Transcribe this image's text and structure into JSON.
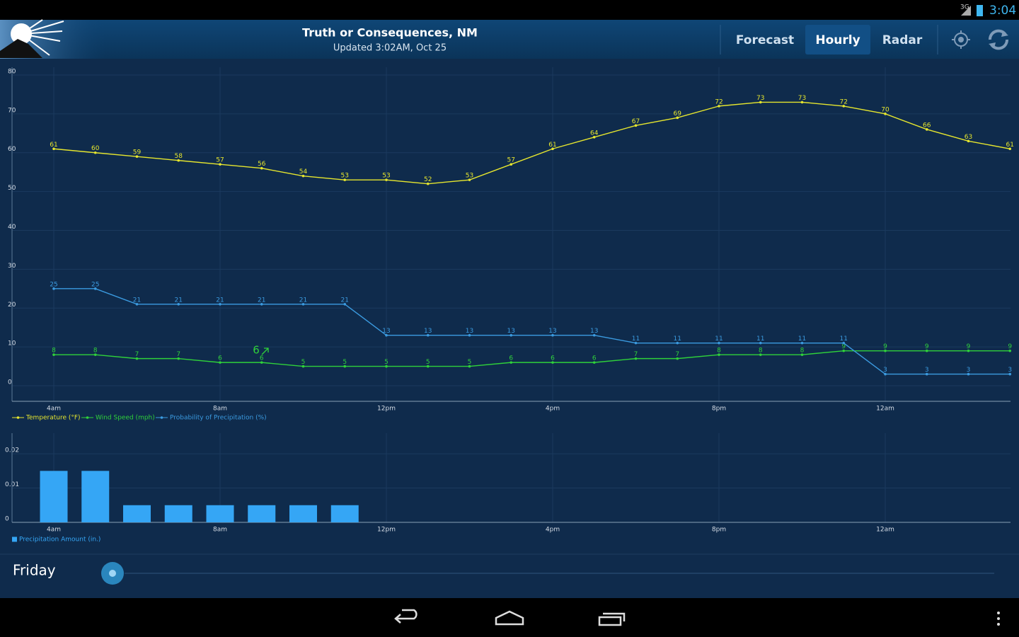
{
  "status_bar": {
    "network": "3G",
    "time": "3:04"
  },
  "header": {
    "location": "Truth or Consequences, NM",
    "updated": "Updated 3:02AM, Oct 25",
    "tabs": [
      "Forecast",
      "Hourly",
      "Radar"
    ],
    "selected_tab": 1
  },
  "chart_data": [
    {
      "type": "line",
      "categories": [
        "4am",
        null,
        null,
        null,
        "8am",
        null,
        null,
        null,
        "12pm",
        null,
        null,
        null,
        "4pm",
        null,
        null,
        null,
        "8pm",
        null,
        null,
        null,
        "12am",
        null,
        null,
        null
      ],
      "series": [
        {
          "name": "Temperature (°F)",
          "color": "#e6e62e",
          "values": [
            61,
            60,
            59,
            58,
            57,
            56,
            54,
            53,
            53,
            52,
            53,
            57,
            61,
            64,
            67,
            69,
            72,
            73,
            73,
            72,
            70,
            66,
            63,
            61
          ]
        },
        {
          "name": "Wind Speed (mph)",
          "color": "#2fd13a",
          "values": [
            8,
            8,
            7,
            7,
            6,
            6,
            5,
            5,
            5,
            5,
            5,
            6,
            6,
            6,
            7,
            7,
            8,
            8,
            8,
            9,
            9,
            9,
            9,
            9
          ]
        },
        {
          "name": "Probability of Precipitation (%)",
          "color": "#3b9be0",
          "values": [
            25,
            25,
            21,
            21,
            21,
            21,
            21,
            21,
            13,
            13,
            13,
            13,
            13,
            13,
            11,
            11,
            11,
            11,
            11,
            11,
            3,
            3,
            3,
            3
          ]
        }
      ],
      "annotation": "6",
      "ylim": [
        -4,
        82
      ],
      "yticks": [
        0,
        10,
        20,
        30,
        40,
        50,
        60,
        70,
        80
      ],
      "grid": true
    },
    {
      "type": "bar",
      "categories": [
        "4am",
        null,
        null,
        null,
        "8am",
        null,
        null,
        null,
        "12pm",
        null,
        null,
        null,
        "4pm",
        null,
        null,
        null,
        "8pm",
        null,
        null,
        null,
        "12am",
        null,
        null,
        null
      ],
      "series": [
        {
          "name": "Precipitation Amount (in.)",
          "color": "#35a6f5",
          "values": [
            0.015,
            0.015,
            0.005,
            0.005,
            0.005,
            0.005,
            0.005,
            0.005,
            0,
            0,
            0,
            0,
            0,
            0,
            0,
            0,
            0,
            0,
            0,
            0,
            0,
            0,
            0,
            0
          ]
        }
      ],
      "ylim": [
        0,
        0.026
      ],
      "yticks": [
        0,
        0.01,
        0.02
      ],
      "grid": true
    }
  ],
  "day": "Friday"
}
